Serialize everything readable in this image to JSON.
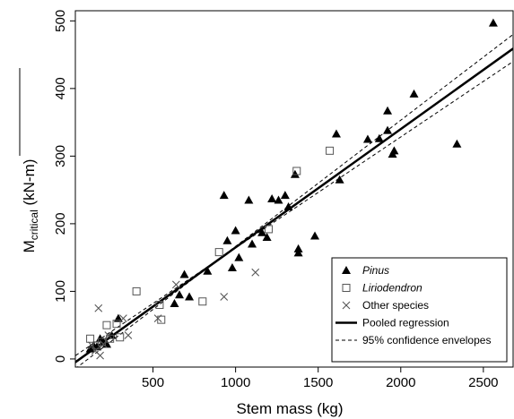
{
  "chart_data": {
    "type": "scatter",
    "xlabel": "Stem mass (kg)",
    "ylabel": {
      "main": "M",
      "sub": "critical",
      "unit": " (kN-m)"
    },
    "xlim": [
      30,
      2680
    ],
    "ylim": [
      -12,
      515
    ],
    "xticks": [
      500,
      1000,
      1500,
      2000,
      2500
    ],
    "yticks": [
      0,
      100,
      200,
      300,
      400,
      500
    ],
    "grid": false,
    "legend_position": "bottom-right",
    "series": [
      {
        "name": "Pinus",
        "marker": "filled-triangle",
        "points": [
          [
            120,
            15
          ],
          [
            140,
            20
          ],
          [
            160,
            18
          ],
          [
            180,
            30
          ],
          [
            200,
            25
          ],
          [
            220,
            22
          ],
          [
            250,
            35
          ],
          [
            290,
            60
          ],
          [
            630,
            82
          ],
          [
            660,
            95
          ],
          [
            690,
            125
          ],
          [
            720,
            92
          ],
          [
            830,
            130
          ],
          [
            930,
            242
          ],
          [
            950,
            175
          ],
          [
            980,
            135
          ],
          [
            1000,
            190
          ],
          [
            1020,
            150
          ],
          [
            1080,
            235
          ],
          [
            1100,
            170
          ],
          [
            1160,
            187
          ],
          [
            1190,
            180
          ],
          [
            1220,
            237
          ],
          [
            1260,
            235
          ],
          [
            1300,
            242
          ],
          [
            1320,
            225
          ],
          [
            1360,
            273
          ],
          [
            1380,
            157
          ],
          [
            1380,
            163
          ],
          [
            1480,
            182
          ],
          [
            1610,
            333
          ],
          [
            1630,
            265
          ],
          [
            1800,
            325
          ],
          [
            1870,
            326
          ],
          [
            1920,
            367
          ],
          [
            1920,
            338
          ],
          [
            1950,
            303
          ],
          [
            1960,
            308
          ],
          [
            2080,
            392
          ],
          [
            2340,
            318
          ],
          [
            2560,
            497
          ]
        ]
      },
      {
        "name": "Liriodendron",
        "marker": "open-square",
        "points": [
          [
            120,
            30
          ],
          [
            160,
            20
          ],
          [
            190,
            25
          ],
          [
            220,
            50
          ],
          [
            240,
            30
          ],
          [
            280,
            52
          ],
          [
            300,
            32
          ],
          [
            400,
            100
          ],
          [
            540,
            80
          ],
          [
            550,
            58
          ],
          [
            800,
            85
          ],
          [
            900,
            158
          ],
          [
            1200,
            192
          ],
          [
            1370,
            278
          ],
          [
            1570,
            308
          ]
        ]
      },
      {
        "name": "Other species",
        "marker": "cross",
        "points": [
          [
            130,
            20
          ],
          [
            150,
            12
          ],
          [
            170,
            75
          ],
          [
            180,
            5
          ],
          [
            200,
            22
          ],
          [
            230,
            35
          ],
          [
            320,
            60
          ],
          [
            350,
            35
          ],
          [
            530,
            60
          ],
          [
            640,
            110
          ],
          [
            930,
            92
          ],
          [
            1120,
            128
          ]
        ]
      }
    ],
    "regression": {
      "name": "Pooled regression",
      "intercept": -10,
      "slope": 0.175
    },
    "confidence": {
      "name": "95% confidence envelopes",
      "low_at_x0": 0,
      "low_at_x2680": 440,
      "high_at_x0": -20,
      "high_at_x2680": 480
    }
  }
}
